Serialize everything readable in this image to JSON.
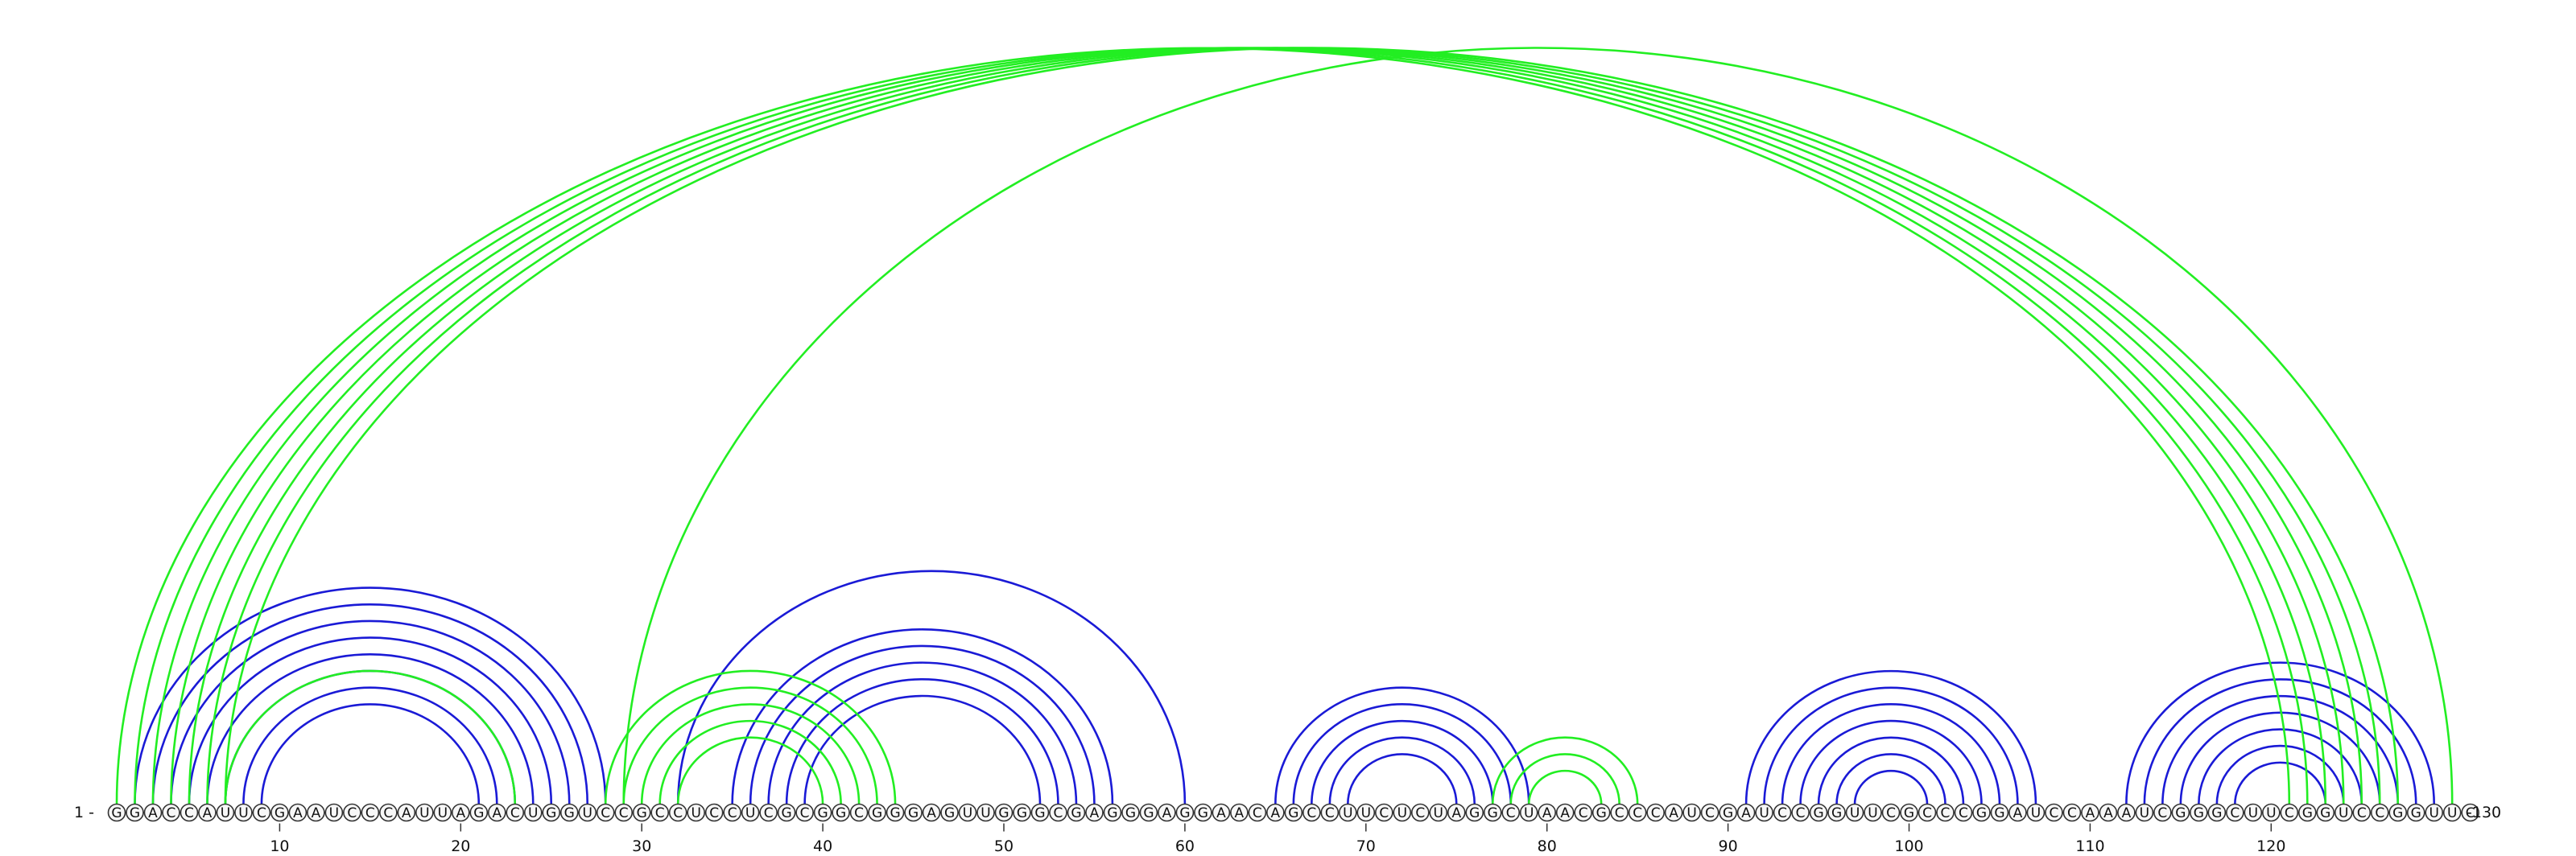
{
  "diagram": {
    "type": "rna-arc-diagram",
    "sequence": "GGACCAUUCGAAUCCCAUUAGACUGGUCCGCCUCCUCGCGGCGGGAGUUGGGCGAGGGAGGAACAGCCUUCUCUAGGCUAACGCCCAUCGAUCCGGUUCGCCCGGAUCCAAAUCGGGCUUCGGUCCGGUUC",
    "start_label": "1 -",
    "end_label": "-130",
    "tick_labels": [
      "10",
      "20",
      "30",
      "40",
      "50",
      "60",
      "70",
      "80",
      "90",
      "100",
      "110",
      "120"
    ],
    "colors": {
      "blue": "#1a1ad6",
      "green": "#22ee22"
    },
    "arc_groups": [
      {
        "color": "blue",
        "pairs": [
          [
            2,
            28
          ],
          [
            3,
            27
          ],
          [
            4,
            26
          ],
          [
            5,
            25
          ],
          [
            6,
            24
          ],
          [
            7,
            23
          ],
          [
            8,
            22
          ],
          [
            9,
            21
          ]
        ]
      },
      {
        "color": "green",
        "pairs": [
          [
            7,
            23
          ]
        ]
      },
      {
        "color": "blue",
        "pairs": [
          [
            32,
            60
          ],
          [
            35,
            56
          ],
          [
            36,
            55
          ],
          [
            37,
            54
          ],
          [
            38,
            53
          ],
          [
            39,
            52
          ]
        ]
      },
      {
        "color": "green",
        "pairs": [
          [
            28,
            44
          ],
          [
            29,
            43
          ],
          [
            30,
            42
          ],
          [
            31,
            41
          ],
          [
            32,
            40
          ]
        ]
      },
      {
        "color": "blue",
        "pairs": [
          [
            65,
            79
          ],
          [
            66,
            78
          ],
          [
            67,
            77
          ],
          [
            68,
            76
          ],
          [
            69,
            75
          ]
        ]
      },
      {
        "color": "green",
        "pairs": [
          [
            77,
            85
          ],
          [
            78,
            84
          ],
          [
            79,
            83
          ]
        ]
      },
      {
        "color": "blue",
        "pairs": [
          [
            91,
            107
          ],
          [
            92,
            106
          ],
          [
            93,
            105
          ],
          [
            94,
            104
          ],
          [
            95,
            103
          ],
          [
            96,
            102
          ],
          [
            97,
            101
          ]
        ]
      },
      {
        "color": "blue",
        "pairs": [
          [
            112,
            129
          ],
          [
            113,
            128
          ],
          [
            114,
            127
          ],
          [
            115,
            126
          ],
          [
            116,
            125
          ],
          [
            117,
            124
          ],
          [
            118,
            123
          ]
        ]
      },
      {
        "color": "green",
        "pairs": [
          [
            1,
            121
          ],
          [
            2,
            122
          ],
          [
            3,
            123
          ],
          [
            4,
            124
          ],
          [
            5,
            125
          ],
          [
            6,
            126
          ],
          [
            7,
            127
          ],
          [
            29,
            130
          ]
        ]
      }
    ]
  }
}
